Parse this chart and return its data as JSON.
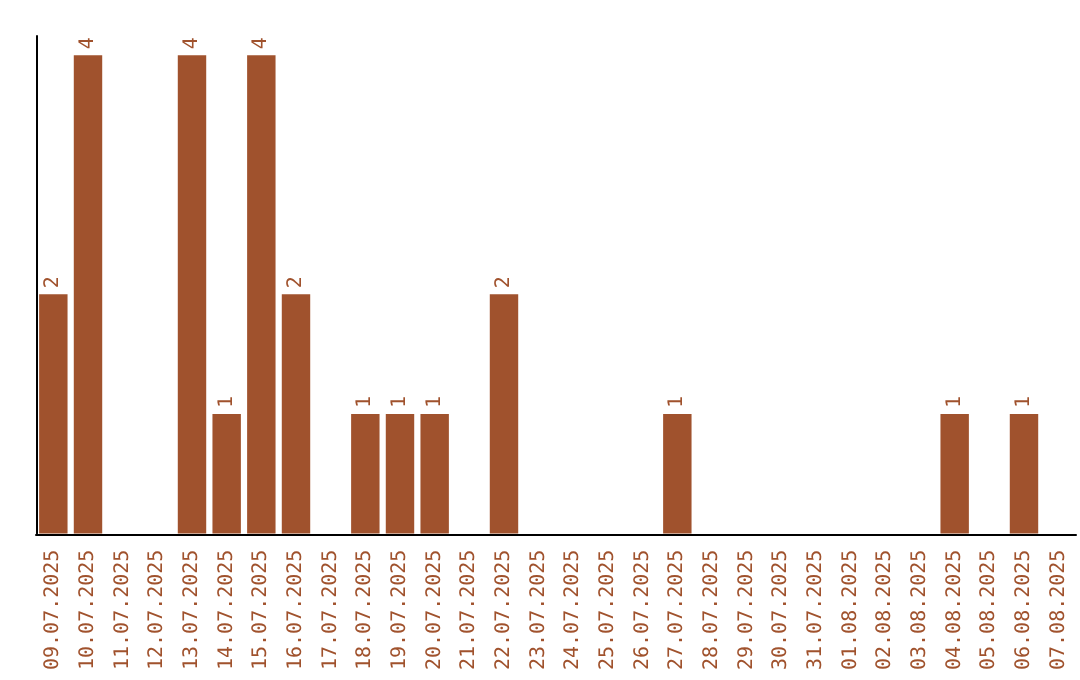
{
  "chart_data": {
    "type": "bar",
    "categories": [
      "09.07.2025",
      "10.07.2025",
      "11.07.2025",
      "12.07.2025",
      "13.07.2025",
      "14.07.2025",
      "15.07.2025",
      "16.07.2025",
      "17.07.2025",
      "18.07.2025",
      "19.07.2025",
      "20.07.2025",
      "21.07.2025",
      "22.07.2025",
      "23.07.2025",
      "24.07.2025",
      "25.07.2025",
      "26.07.2025",
      "27.07.2025",
      "28.07.2025",
      "29.07.2025",
      "30.07.2025",
      "31.07.2025",
      "01.08.2025",
      "02.08.2025",
      "03.08.2025",
      "04.08.2025",
      "05.08.2025",
      "06.08.2025",
      "07.08.2025"
    ],
    "values": [
      2,
      4,
      0,
      0,
      4,
      1,
      4,
      2,
      0,
      1,
      1,
      1,
      0,
      2,
      0,
      0,
      0,
      0,
      1,
      0,
      0,
      0,
      0,
      0,
      0,
      0,
      1,
      0,
      1,
      0
    ],
    "value_labels": [
      "2",
      "4",
      null,
      null,
      "4",
      "1",
      "4",
      "2",
      null,
      "1",
      "1",
      "1",
      null,
      "2",
      null,
      null,
      null,
      null,
      "1",
      null,
      null,
      null,
      null,
      null,
      null,
      null,
      "1",
      null,
      "1",
      null
    ],
    "color": "#a0522d",
    "grid": false
  }
}
